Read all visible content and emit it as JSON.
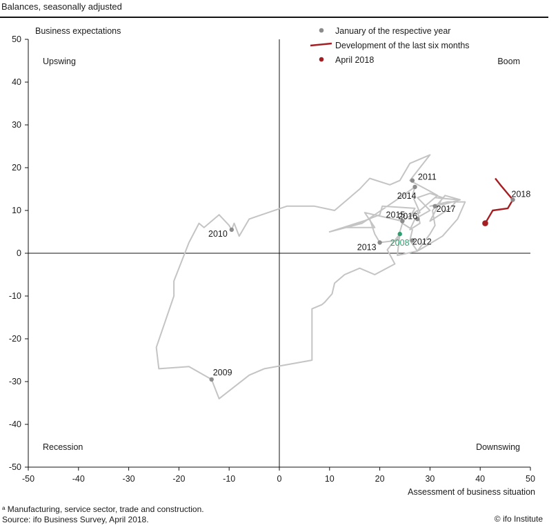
{
  "header": {
    "subtitle": "Balances, seasonally adjusted"
  },
  "chart_data": {
    "type": "line",
    "xlabel": "Assessment of business situation",
    "ylabel": "Business expectations",
    "xlim": [
      -50,
      50
    ],
    "ylim": [
      -50,
      50
    ],
    "x_ticks": [
      -50,
      -40,
      -30,
      -20,
      -10,
      0,
      10,
      20,
      30,
      40,
      50
    ],
    "y_ticks": [
      50,
      40,
      30,
      20,
      10,
      0,
      -10,
      -20,
      -30,
      -40,
      -50
    ],
    "quadrants": {
      "top_left": "Upswing",
      "top_right": "Boom",
      "bottom_left": "Recession",
      "bottom_right": "Downswing"
    },
    "legend": {
      "position": "top-right",
      "entries": [
        {
          "label": "January of the respective year",
          "marker": "dot",
          "color": "#8c8c8c"
        },
        {
          "label": "Development of the last six months",
          "marker": "line",
          "color": "#a31f24"
        },
        {
          "label": "April 2018",
          "marker": "dot",
          "color": "#a31f24"
        }
      ]
    },
    "colors": {
      "history": "#c4c4c4",
      "recent": "#a31f24",
      "january_marker": "#8c8c8c",
      "highlight_2008": "#2e9e6e",
      "axis": "#111111"
    },
    "series": [
      {
        "role": "history",
        "points": [
          [
            24.0,
            4.5
          ],
          [
            21.5,
            0.8
          ],
          [
            23.0,
            -2.5
          ],
          [
            19.0,
            -5.0
          ],
          [
            16.0,
            -3.5
          ],
          [
            13.0,
            -5.0
          ],
          [
            11.0,
            -7.0
          ],
          [
            10.5,
            -9.5
          ],
          [
            9.0,
            -11.5
          ],
          [
            8.5,
            -12.0
          ],
          [
            6.5,
            -13.0
          ],
          [
            6.5,
            -25.0
          ],
          [
            -3.0,
            -27.0
          ],
          [
            -6.0,
            -28.5
          ],
          [
            -12.0,
            -34.0
          ],
          [
            -13.5,
            -29.5
          ],
          [
            -18.0,
            -26.5
          ],
          [
            -24.0,
            -27.0
          ],
          [
            -24.5,
            -22.0
          ],
          [
            -21.0,
            -10.0
          ],
          [
            -21.0,
            -6.5
          ],
          [
            -18.0,
            2.5
          ],
          [
            -16.0,
            7.0
          ],
          [
            -15.0,
            6.0
          ],
          [
            -12.0,
            9.0
          ],
          [
            -10.0,
            6.5
          ],
          [
            -9.5,
            5.5
          ],
          [
            -9.0,
            7.0
          ],
          [
            -8.0,
            4.0
          ],
          [
            -6.0,
            8.0
          ],
          [
            1.5,
            11.0
          ],
          [
            7.0,
            11.0
          ],
          [
            11.0,
            10.0
          ],
          [
            16.0,
            15.0
          ],
          [
            18.0,
            17.5
          ],
          [
            22.0,
            16.0
          ],
          [
            24.0,
            17.0
          ],
          [
            26.0,
            21.0
          ],
          [
            30.0,
            23.0
          ],
          [
            26.0,
            17.0
          ],
          [
            30.0,
            14.5
          ],
          [
            31.5,
            13.5
          ],
          [
            28.0,
            10.0
          ],
          [
            31.0,
            13.0
          ],
          [
            35.5,
            12.5
          ],
          [
            34.0,
            10.5
          ],
          [
            30.0,
            7.5
          ],
          [
            32.5,
            13.0
          ],
          [
            30.0,
            14.0
          ],
          [
            27.5,
            13.0
          ],
          [
            30.0,
            10.0
          ],
          [
            27.0,
            8.0
          ],
          [
            26.0,
            5.5
          ],
          [
            28.0,
            7.0
          ],
          [
            27.5,
            10.0
          ],
          [
            24.5,
            7.5
          ],
          [
            17.0,
            9.5
          ],
          [
            19.0,
            6.0
          ],
          [
            13.5,
            6.0
          ],
          [
            20.0,
            9.0
          ],
          [
            20.5,
            11.0
          ],
          [
            27.0,
            10.5
          ],
          [
            26.0,
            8.5
          ],
          [
            28.0,
            9.5
          ],
          [
            26.5,
            13.5
          ],
          [
            27.0,
            15.5
          ],
          [
            24.0,
            13.0
          ],
          [
            16.5,
            7.0
          ],
          [
            10.0,
            5.0
          ],
          [
            18.0,
            8.0
          ],
          [
            19.0,
            4.5
          ],
          [
            20.0,
            2.5
          ],
          [
            23.5,
            3.0
          ],
          [
            24.5,
            7.0
          ],
          [
            26.5,
            5.5
          ],
          [
            26.0,
            3.0
          ],
          [
            27.5,
            0.5
          ],
          [
            30.0,
            4.5
          ],
          [
            31.0,
            6.5
          ],
          [
            30.5,
            10.0
          ],
          [
            33.0,
            13.5
          ],
          [
            36.0,
            12.5
          ],
          [
            33.0,
            11.5
          ],
          [
            30.0,
            11.0
          ],
          [
            33.5,
            12.0
          ],
          [
            37.0,
            12.0
          ],
          [
            35.5,
            8.0
          ],
          [
            32.5,
            4.0
          ],
          [
            27.5,
            0.5
          ],
          [
            23.5,
            -0.5
          ],
          [
            24.0,
            4.5
          ]
        ]
      },
      {
        "role": "last_six_months",
        "name": "Development of the last six months",
        "points": [
          [
            43.0,
            17.5
          ],
          [
            44.0,
            16.0
          ],
          [
            46.5,
            12.5
          ],
          [
            45.5,
            10.5
          ],
          [
            42.5,
            10.0
          ],
          [
            42.0,
            9.0
          ],
          [
            41.0,
            7.0
          ]
        ]
      }
    ],
    "january_markers": [
      {
        "label": "2008",
        "x": 24.0,
        "y": 4.5,
        "highlight": true
      },
      {
        "label": "2009",
        "x": -13.5,
        "y": -29.5
      },
      {
        "label": "2010",
        "x": -9.5,
        "y": 5.5
      },
      {
        "label": "2011",
        "x": 26.5,
        "y": 17.0
      },
      {
        "label": "2012",
        "x": 26.5,
        "y": 3.0
      },
      {
        "label": "2013",
        "x": 20.0,
        "y": 2.5
      },
      {
        "label": "2014",
        "x": 27.0,
        "y": 15.5
      },
      {
        "label": "2015",
        "x": 24.5,
        "y": 7.5
      },
      {
        "label": "2016",
        "x": 27.5,
        "y": 8.0
      },
      {
        "label": "2017",
        "x": 31.0,
        "y": 11.0
      },
      {
        "label": "2018",
        "x": 46.5,
        "y": 12.5
      }
    ],
    "current_point": {
      "label": "April 2018",
      "x": 41.0,
      "y": 7.0
    }
  },
  "footnotes": {
    "note": "ᵃ Manufacturing, service sector, trade and construction.",
    "source": "Source: ifo Business Survey, April 2018.",
    "copyright": "© ifo Institute"
  }
}
